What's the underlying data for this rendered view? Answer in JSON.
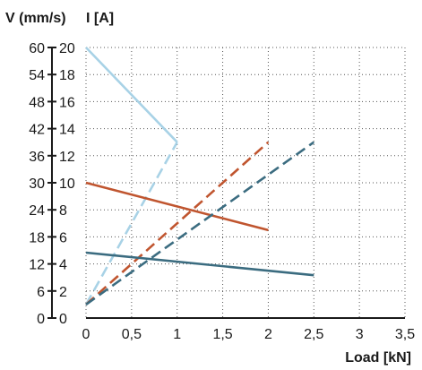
{
  "chart_data": {
    "type": "line",
    "xlabel": "Load [kN]",
    "ylabel_left": "V (mm/s)",
    "ylabel_right": "I [A]",
    "x_ticks": [
      "0",
      "0,5",
      "1",
      "1,5",
      "2",
      "2,5",
      "3",
      "3,5"
    ],
    "y_left_ticks": [
      "0",
      "6",
      "12",
      "18",
      "24",
      "30",
      "36",
      "42",
      "48",
      "54",
      "60"
    ],
    "y_right_ticks": [
      "0",
      "2",
      "4",
      "6",
      "8",
      "10",
      "12",
      "14",
      "16",
      "18",
      "20"
    ],
    "xlim": [
      0,
      3.5
    ],
    "ylim_left": [
      0,
      60
    ],
    "ylim_right": [
      0,
      20
    ],
    "grid": true,
    "series": [
      {
        "axis": "V",
        "style": "solid",
        "color": "#a8d2e6",
        "x": [
          0,
          1
        ],
        "y": [
          60,
          39
        ]
      },
      {
        "axis": "I",
        "style": "dashed",
        "color": "#a8d2e6",
        "x": [
          0,
          1
        ],
        "y": [
          1,
          13
        ]
      },
      {
        "axis": "V",
        "style": "solid",
        "color": "#c0552f",
        "x": [
          0,
          2
        ],
        "y": [
          30,
          19.5
        ]
      },
      {
        "axis": "I",
        "style": "dashed",
        "color": "#c0552f",
        "x": [
          0,
          2
        ],
        "y": [
          1,
          13
        ]
      },
      {
        "axis": "V",
        "style": "solid",
        "color": "#3b6c80",
        "x": [
          0,
          2.5
        ],
        "y": [
          14.5,
          9.5
        ]
      },
      {
        "axis": "I",
        "style": "dashed",
        "color": "#3b6c80",
        "x": [
          0,
          2.5
        ],
        "y": [
          1,
          13
        ]
      }
    ]
  }
}
